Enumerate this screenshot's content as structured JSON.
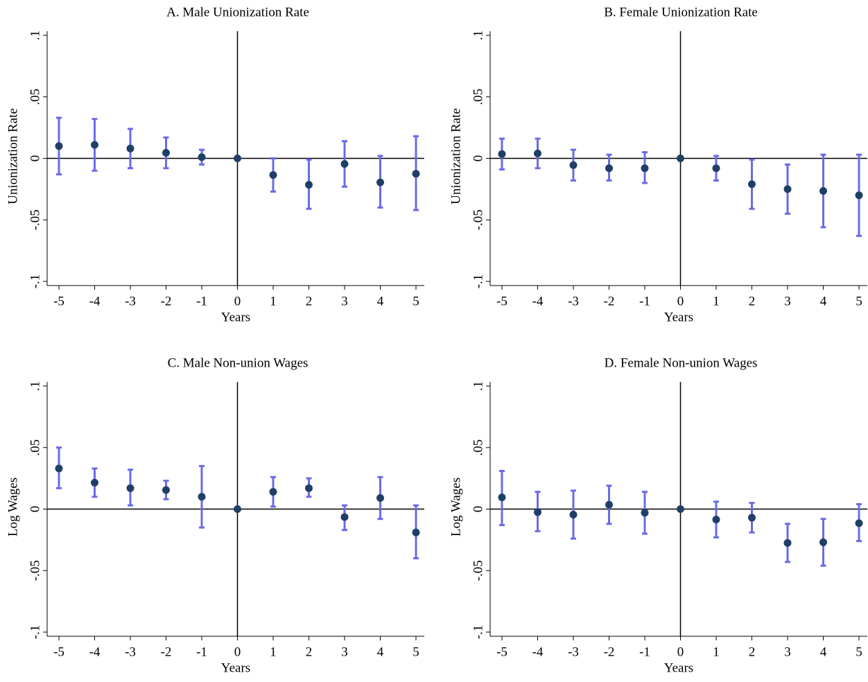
{
  "chart_data": [
    {
      "type": "errorbar",
      "title": "A. Male Unionization Rate",
      "xlabel": "Years",
      "ylabel": "Unionization Rate",
      "x": [
        -5,
        -4,
        -3,
        -2,
        -1,
        0,
        1,
        2,
        3,
        4,
        5
      ],
      "values": [
        0.01,
        0.011,
        0.008,
        0.0045,
        0.001,
        0,
        -0.0135,
        -0.0215,
        -0.0045,
        -0.0195,
        -0.0125
      ],
      "lower": [
        -0.013,
        -0.01,
        -0.008,
        -0.008,
        -0.005,
        null,
        -0.027,
        -0.041,
        -0.023,
        -0.04,
        -0.042
      ],
      "upper": [
        0.033,
        0.032,
        0.024,
        0.017,
        0.007,
        null,
        0.0,
        -0.001,
        0.014,
        0.002,
        0.018
      ],
      "color": "#1f3f66",
      "error_color": "#6a6ae8",
      "xlim": [
        -5,
        5
      ],
      "xticks": [
        -5,
        -4,
        -3,
        -2,
        -1,
        0,
        1,
        2,
        3,
        4,
        5
      ],
      "ylim": [
        -0.1,
        0.1
      ],
      "yticks": [
        {
          "value": -0.1,
          "label": "-.1"
        },
        {
          "value": -0.05,
          "label": "-.05"
        },
        0,
        {
          "value": 0.05,
          "label": ".05"
        },
        {
          "value": 0.1,
          "label": ".1"
        }
      ],
      "xline": 0,
      "yline": 0
    },
    {
      "type": "errorbar",
      "title": "B. Female Unionization Rate",
      "xlabel": "Years",
      "ylabel": "Unionization Rate",
      "x": [
        -5,
        -4,
        -3,
        -2,
        -1,
        0,
        1,
        2,
        3,
        4,
        5
      ],
      "values": [
        0.0035,
        0.004,
        -0.0055,
        -0.008,
        -0.008,
        0,
        -0.008,
        -0.021,
        -0.025,
        -0.0265,
        -0.03
      ],
      "lower": [
        -0.009,
        -0.008,
        -0.018,
        -0.018,
        -0.02,
        null,
        -0.018,
        -0.041,
        -0.045,
        -0.056,
        -0.063
      ],
      "upper": [
        0.016,
        0.016,
        0.007,
        0.003,
        0.005,
        null,
        0.002,
        -0.001,
        -0.005,
        0.003,
        0.003
      ],
      "color": "#1f3f66",
      "error_color": "#6a6ae8",
      "xlim": [
        -5,
        5
      ],
      "xticks": [
        -5,
        -4,
        -3,
        -2,
        -1,
        0,
        1,
        2,
        3,
        4,
        5
      ],
      "ylim": [
        -0.1,
        0.1
      ],
      "yticks": [
        {
          "value": -0.1,
          "label": "-.1"
        },
        {
          "value": -0.05,
          "label": "-.05"
        },
        0,
        {
          "value": 0.05,
          "label": ".05"
        },
        {
          "value": 0.1,
          "label": ".1"
        }
      ],
      "xline": 0,
      "yline": 0
    },
    {
      "type": "errorbar",
      "title": "C. Male Non-union Wages",
      "xlabel": "Years",
      "ylabel": "Log Wages",
      "x": [
        -5,
        -4,
        -3,
        -2,
        -1,
        0,
        1,
        2,
        3,
        4,
        5
      ],
      "values": [
        0.033,
        0.0215,
        0.017,
        0.0155,
        0.01,
        0,
        0.014,
        0.017,
        -0.0065,
        0.009,
        -0.019
      ],
      "lower": [
        0.017,
        0.01,
        0.003,
        0.008,
        -0.015,
        null,
        0.002,
        0.01,
        -0.017,
        -0.008,
        -0.04
      ],
      "upper": [
        0.05,
        0.033,
        0.032,
        0.023,
        0.035,
        null,
        0.026,
        0.025,
        0.003,
        0.026,
        0.003
      ],
      "color": "#1f3f66",
      "error_color": "#6a6ae8",
      "xlim": [
        -5,
        5
      ],
      "xticks": [
        -5,
        -4,
        -3,
        -2,
        -1,
        0,
        1,
        2,
        3,
        4,
        5
      ],
      "ylim": [
        -0.1,
        0.1
      ],
      "yticks": [
        {
          "value": -0.1,
          "label": "-.1"
        },
        {
          "value": -0.05,
          "label": "-.05"
        },
        0,
        {
          "value": 0.05,
          "label": ".05"
        },
        {
          "value": 0.1,
          "label": ".1"
        }
      ],
      "xline": 0,
      "yline": 0
    },
    {
      "type": "errorbar",
      "title": "D. Female Non-union Wages",
      "xlabel": "Years",
      "ylabel": "Log Wages",
      "x": [
        -5,
        -4,
        -3,
        -2,
        -1,
        0,
        1,
        2,
        3,
        4,
        5
      ],
      "values": [
        0.0095,
        -0.0025,
        -0.0045,
        0.0035,
        -0.003,
        0,
        -0.0085,
        -0.007,
        -0.0275,
        -0.027,
        -0.0115
      ],
      "lower": [
        -0.013,
        -0.018,
        -0.024,
        -0.012,
        -0.02,
        null,
        -0.023,
        -0.019,
        -0.043,
        -0.046,
        -0.026
      ],
      "upper": [
        0.031,
        0.014,
        0.015,
        0.019,
        0.014,
        null,
        0.006,
        0.005,
        -0.012,
        -0.008,
        0.004
      ],
      "color": "#1f3f66",
      "error_color": "#6a6ae8",
      "xlim": [
        -5,
        5
      ],
      "xticks": [
        -5,
        -4,
        -3,
        -2,
        -1,
        0,
        1,
        2,
        3,
        4,
        5
      ],
      "ylim": [
        -0.1,
        0.1
      ],
      "yticks": [
        {
          "value": -0.1,
          "label": "-.1"
        },
        {
          "value": -0.05,
          "label": "-.05"
        },
        0,
        {
          "value": 0.05,
          "label": ".05"
        },
        {
          "value": 0.1,
          "label": ".1"
        }
      ],
      "xline": 0,
      "yline": 0
    }
  ]
}
